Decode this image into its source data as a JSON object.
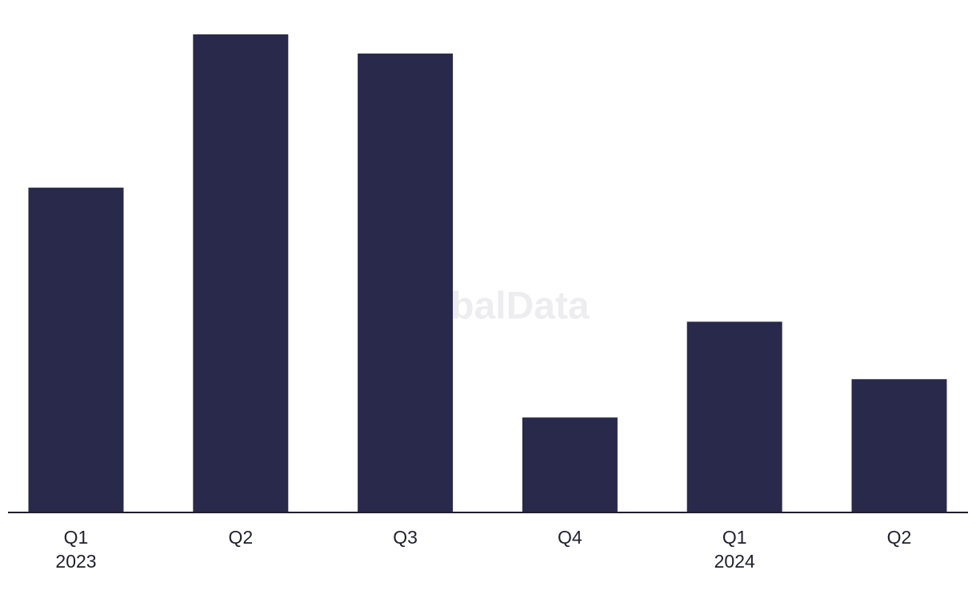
{
  "chart_data": {
    "type": "bar",
    "watermark": "GlobalData",
    "categories": [
      "Q1",
      "Q2",
      "Q3",
      "Q4",
      "Q1",
      "Q2"
    ],
    "year_labels": [
      "2023",
      null,
      null,
      null,
      "2024",
      null
    ],
    "values": [
      407,
      599,
      575,
      119,
      239,
      167
    ],
    "color": "#29294b",
    "ylim": [
      0,
      600
    ]
  }
}
